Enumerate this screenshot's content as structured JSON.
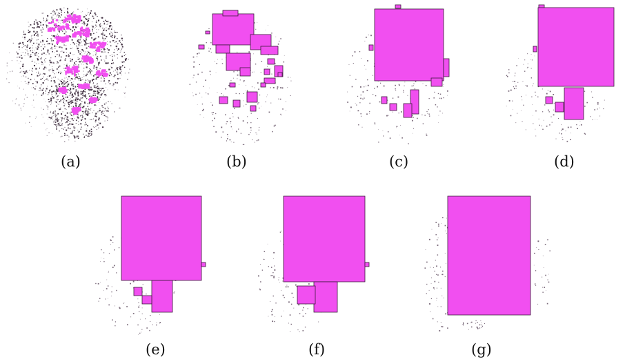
{
  "colors": {
    "fill": "#f14ff0",
    "edge": "#3a1a3a",
    "speck": "#7a6a7a",
    "background": "#ffffff"
  },
  "panels": [
    {
      "caption": "(a)"
    },
    {
      "caption": "(b)"
    },
    {
      "caption": "(c)"
    },
    {
      "caption": "(d)"
    },
    {
      "caption": "(e)"
    },
    {
      "caption": "(f)"
    },
    {
      "caption": "(g)"
    }
  ]
}
